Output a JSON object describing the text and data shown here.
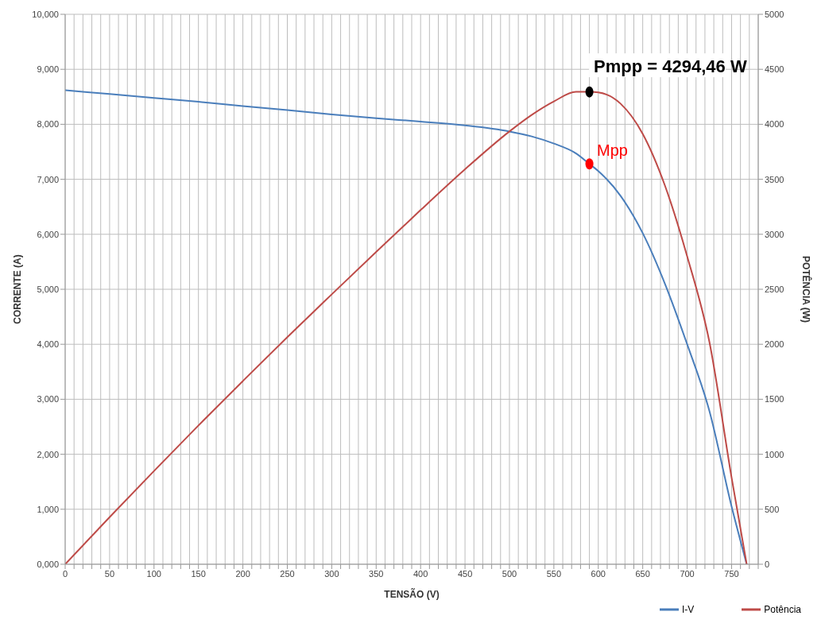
{
  "chart_data": {
    "type": "line",
    "xlabel": "TENSÃO (V)",
    "ylabel": "CORRENTE (A)",
    "y2label": "POTÊNCIA (W)",
    "x": [
      0,
      50,
      100,
      150,
      200,
      250,
      300,
      350,
      400,
      450,
      500,
      525,
      550,
      575,
      590,
      600,
      625,
      650,
      675,
      700,
      725,
      750,
      767
    ],
    "series": [
      {
        "name": "I-V",
        "color": "#4a7ebb",
        "values": [
          8.62,
          8.55,
          8.48,
          8.41,
          8.33,
          8.26,
          8.18,
          8.11,
          8.05,
          7.98,
          7.87,
          7.78,
          7.65,
          7.47,
          7.28,
          7.15,
          6.7,
          6.02,
          5.1,
          4.0,
          2.79,
          1.05,
          0
        ]
      },
      {
        "name": "Potência",
        "color": "#be4b48",
        "axis": "y2",
        "values": [
          0,
          428,
          848,
          1262,
          1666,
          2065,
          2454,
          2839,
          3220,
          3591,
          3935,
          4085,
          4208,
          4295,
          4295,
          4290,
          4188,
          3913,
          3443,
          2800,
          2023,
          788,
          0
        ]
      },
      {
        "type": "scatter",
        "name": "Pmpp = 4294,46 W",
        "color": "#000000",
        "axis": "y2",
        "marker": "circle",
        "x": [
          590
        ],
        "values": [
          4294.46
        ]
      },
      {
        "type": "scatter",
        "name": "Mpp",
        "color": "#ff0000",
        "marker": "circle",
        "x": [
          590
        ],
        "values": [
          7.28
        ]
      }
    ],
    "xlim": [
      0,
      780
    ],
    "xticks": [
      0,
      {
        "value": 10,
        "label": null
      },
      {
        "value": 20,
        "label": null
      },
      {
        "value": 30,
        "label": null
      },
      {
        "value": 40,
        "label": null
      },
      50,
      {
        "value": 60,
        "label": null
      },
      {
        "value": 70,
        "label": null
      },
      {
        "value": 80,
        "label": null
      },
      {
        "value": 90,
        "label": null
      },
      100,
      {
        "value": 110,
        "label": null
      },
      {
        "value": 120,
        "label": null
      },
      {
        "value": 130,
        "label": null
      },
      {
        "value": 140,
        "label": null
      },
      150,
      {
        "value": 160,
        "label": null
      },
      {
        "value": 170,
        "label": null
      },
      {
        "value": 180,
        "label": null
      },
      {
        "value": 190,
        "label": null
      },
      200,
      {
        "value": 210,
        "label": null
      },
      {
        "value": 220,
        "label": null
      },
      {
        "value": 230,
        "label": null
      },
      {
        "value": 240,
        "label": null
      },
      250,
      {
        "value": 260,
        "label": null
      },
      {
        "value": 270,
        "label": null
      },
      {
        "value": 280,
        "label": null
      },
      {
        "value": 290,
        "label": null
      },
      300,
      {
        "value": 310,
        "label": null
      },
      {
        "value": 320,
        "label": null
      },
      {
        "value": 330,
        "label": null
      },
      {
        "value": 340,
        "label": null
      },
      350,
      {
        "value": 360,
        "label": null
      },
      {
        "value": 370,
        "label": null
      },
      {
        "value": 380,
        "label": null
      },
      {
        "value": 390,
        "label": null
      },
      400,
      {
        "value": 410,
        "label": null
      },
      {
        "value": 420,
        "label": null
      },
      {
        "value": 430,
        "label": null
      },
      {
        "value": 440,
        "label": null
      },
      450,
      {
        "value": 460,
        "label": null
      },
      {
        "value": 470,
        "label": null
      },
      {
        "value": 480,
        "label": null
      },
      {
        "value": 490,
        "label": null
      },
      500,
      {
        "value": 510,
        "label": null
      },
      {
        "value": 520,
        "label": null
      },
      {
        "value": 530,
        "label": null
      },
      {
        "value": 540,
        "label": null
      },
      550,
      {
        "value": 560,
        "label": null
      },
      {
        "value": 570,
        "label": null
      },
      {
        "value": 580,
        "label": null
      },
      {
        "value": 590,
        "label": null
      },
      600,
      {
        "value": 610,
        "label": null
      },
      {
        "value": 620,
        "label": null
      },
      {
        "value": 630,
        "label": null
      },
      {
        "value": 640,
        "label": null
      },
      650,
      {
        "value": 660,
        "label": null
      },
      {
        "value": 670,
        "label": null
      },
      {
        "value": 680,
        "label": null
      },
      {
        "value": 690,
        "label": null
      },
      700,
      {
        "value": 710,
        "label": null
      },
      {
        "value": 720,
        "label": null
      },
      {
        "value": 730,
        "label": null
      },
      {
        "value": 740,
        "label": null
      },
      750,
      {
        "value": 760,
        "label": null
      },
      {
        "value": 770,
        "label": null
      },
      {
        "value": 780,
        "label": null
      }
    ],
    "ylim": [
      0,
      10
    ],
    "yticks": [
      {
        "value": 0,
        "label": "0,000"
      },
      {
        "value": 1,
        "label": "1,000"
      },
      {
        "value": 2,
        "label": "2,000"
      },
      {
        "value": 3,
        "label": "3,000"
      },
      {
        "value": 4,
        "label": "4,000"
      },
      {
        "value": 5,
        "label": "5,000"
      },
      {
        "value": 6,
        "label": "6,000"
      },
      {
        "value": 7,
        "label": "7,000"
      },
      {
        "value": 8,
        "label": "8,000"
      },
      {
        "value": 9,
        "label": "9,000"
      },
      {
        "value": 10,
        "label": "10,000"
      }
    ],
    "y2lim": [
      0,
      5000
    ],
    "y2ticks": [
      0,
      500,
      1000,
      1500,
      2000,
      2500,
      3000,
      3500,
      4000,
      4500,
      5000
    ],
    "grid": true,
    "legend": "bottom right",
    "marker": "none",
    "line_style": "solid"
  }
}
